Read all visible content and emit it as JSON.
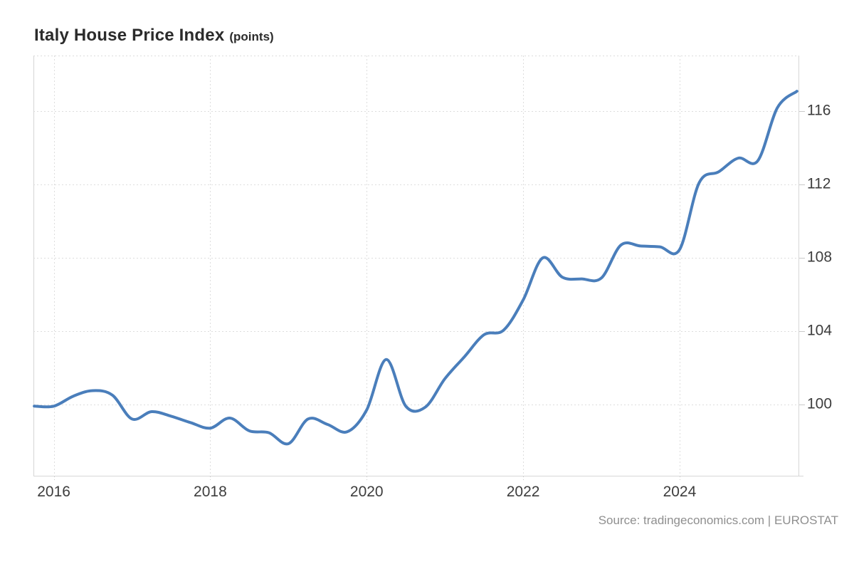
{
  "header": {
    "title": "Italy House Price Index",
    "units": "(points)"
  },
  "footer": {
    "source": "Source: tradingeconomics.com | EUROSTAT"
  },
  "colors": {
    "line": "#4a7ebb",
    "grid": "#dddddd",
    "axis": "#d6d6d6",
    "tick": "#c9c9c9",
    "axis_label": "#3d3d3d",
    "title": "#2b2b2b",
    "source": "#8f8f8f",
    "background": "#ffffff"
  },
  "chart_data": {
    "type": "line",
    "title": "Italy House Price Index",
    "subtitle": "(points)",
    "xlabel": "",
    "ylabel": "points",
    "grid": "dotted",
    "legend_position": "none",
    "xlim": [
      2015.74,
      2025.52
    ],
    "ylim": [
      96.1,
      119.05
    ],
    "xticks": [
      2016,
      2018,
      2020,
      2022,
      2024
    ],
    "yticks": [
      100,
      104,
      108,
      112,
      116
    ],
    "series": [
      {
        "name": "Italy House Price Index",
        "x": [
          2015.75,
          2016.0,
          2016.25,
          2016.5,
          2016.75,
          2017.0,
          2017.25,
          2017.5,
          2017.75,
          2018.0,
          2018.25,
          2018.5,
          2018.75,
          2019.0,
          2019.25,
          2019.5,
          2019.75,
          2020.0,
          2020.25,
          2020.5,
          2020.75,
          2021.0,
          2021.25,
          2021.5,
          2021.75,
          2022.0,
          2022.25,
          2022.5,
          2022.75,
          2023.0,
          2023.25,
          2023.5,
          2023.75,
          2024.0,
          2024.25,
          2024.5,
          2024.75,
          2025.0,
          2025.25,
          2025.5
        ],
        "values": [
          99.9,
          99.9,
          100.45,
          100.75,
          100.5,
          99.2,
          99.6,
          99.35,
          99.0,
          98.7,
          99.25,
          98.55,
          98.45,
          97.85,
          99.2,
          98.9,
          98.5,
          99.7,
          102.45,
          99.9,
          99.85,
          101.4,
          102.6,
          103.8,
          104.05,
          105.7,
          108.0,
          106.95,
          106.85,
          106.9,
          108.7,
          108.65,
          108.6,
          108.45,
          112.1,
          112.7,
          113.45,
          113.3,
          116.2,
          117.1
        ]
      }
    ]
  }
}
